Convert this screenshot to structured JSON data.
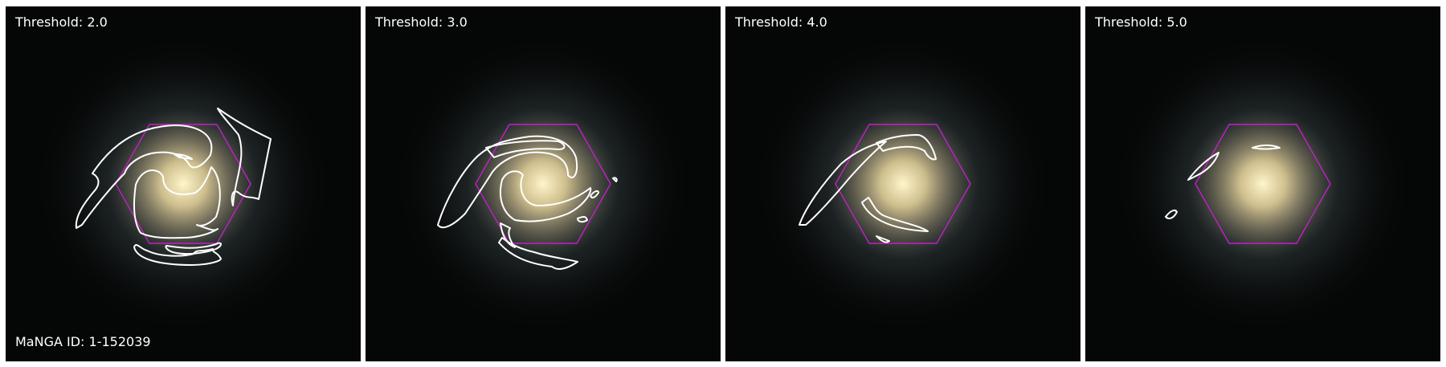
{
  "panels": [
    {
      "label": "Threshold: 2.0"
    },
    {
      "label": "Threshold: 3.0"
    },
    {
      "label": "Threshold: 4.0"
    },
    {
      "label": "Threshold: 5.0"
    }
  ],
  "galaxy_id_label": "MaNGA ID: 1-152039",
  "colors": {
    "background": "#050606",
    "contour": "#ffffff",
    "ifu_hexagon": "#c020c8",
    "galaxy_core": "#f2e2a8",
    "galaxy_halo": "#8a9aa2"
  },
  "icons": {
    "galaxy": "spiral-galaxy-image",
    "contour": "spiral-arm-contour",
    "hexagon": "ifu-footprint-hexagon"
  }
}
